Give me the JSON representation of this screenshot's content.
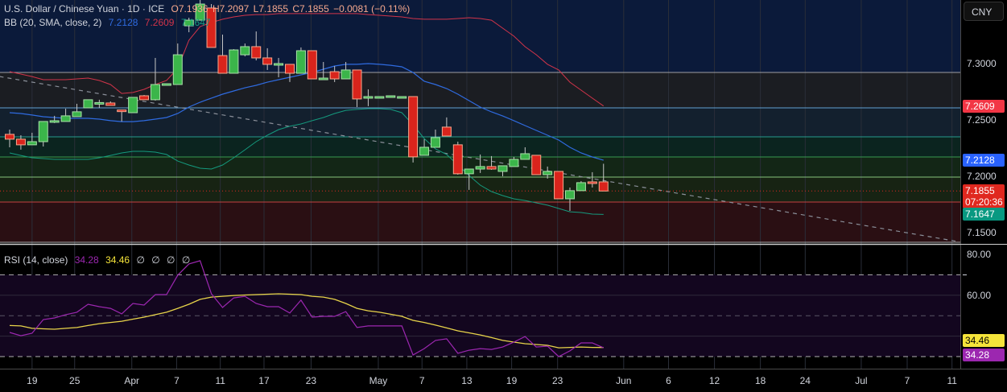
{
  "header": {
    "symbol": "U.S. Dollar / Chinese Yuan · 1D · ICE",
    "open": "O7.1936",
    "high": "H7.2097",
    "low": "L7.1855",
    "close": "C7.1855",
    "change": "−0.0081 (−0.11%)"
  },
  "bb_legend": {
    "label": "BB (20, SMA, close, 2)",
    "basis": "7.2128",
    "upper": "7.2609",
    "lower": "7.1647"
  },
  "rsi_legend": {
    "label": "RSI (14, close)",
    "rsi": "34.28",
    "ma": "34.46",
    "na": [
      "∅",
      "∅",
      "∅",
      "∅"
    ]
  },
  "currency_button": "CNY",
  "price_axis": {
    "ticks": [
      {
        "v": 7.3,
        "label": "7.3000"
      },
      {
        "v": 7.25,
        "label": "7.2500"
      },
      {
        "v": 7.2,
        "label": "7.2000"
      },
      {
        "v": 7.15,
        "label": "7.1500"
      }
    ],
    "badges": [
      {
        "v": 7.2609,
        "label": "7.2609",
        "color": "#f23645"
      },
      {
        "v": 7.2128,
        "label": "7.2128",
        "color": "#2962ff"
      },
      {
        "v": 7.1855,
        "label": "7.1855",
        "sub": "07:20:36",
        "color": "#e0281f"
      },
      {
        "v": 7.1647,
        "label": "7.1647",
        "color": "#089981"
      }
    ]
  },
  "rsi_axis": {
    "ticks": [
      {
        "v": 80,
        "label": "80.00"
      },
      {
        "v": 60,
        "label": "60.00"
      }
    ],
    "badges": [
      {
        "v": 34.46,
        "label": "34.46",
        "color": "#f5e43a",
        "text": "#000"
      },
      {
        "v": 34.28,
        "label": "34.28",
        "color": "#9c27b0",
        "text": "#fff"
      }
    ]
  },
  "time_axis": [
    {
      "i": 2.0,
      "label": "19"
    },
    {
      "i": 5.8,
      "label": "25"
    },
    {
      "i": 10.9,
      "label": "Apr"
    },
    {
      "i": 14.9,
      "label": "7"
    },
    {
      "i": 18.8,
      "label": "11"
    },
    {
      "i": 22.7,
      "label": "17"
    },
    {
      "i": 26.9,
      "label": "23"
    },
    {
      "i": 32.9,
      "label": "May"
    },
    {
      "i": 36.8,
      "label": "7"
    },
    {
      "i": 40.8,
      "label": "13"
    },
    {
      "i": 44.8,
      "label": "19"
    },
    {
      "i": 48.9,
      "label": "23"
    },
    {
      "i": 54.8,
      "label": "Jun"
    },
    {
      "i": 58.8,
      "label": "6"
    },
    {
      "i": 62.9,
      "label": "12"
    },
    {
      "i": 67.0,
      "label": "18"
    },
    {
      "i": 71.0,
      "label": "24"
    },
    {
      "i": 76.0,
      "label": "Jul"
    },
    {
      "i": 80.1,
      "label": "7"
    },
    {
      "i": 84.1,
      "label": "11"
    }
  ],
  "colors": {
    "up": "#3bb54a",
    "up_border": "#a8e0a8",
    "down": "#d9241c",
    "down_border": "#f7a98e",
    "bb_upper": "#d2344a",
    "bb_basis": "#2f6be0",
    "bb_lower": "#159a7e",
    "rsi": "#9c27b0",
    "rsi_ma": "#e8d44a"
  },
  "chart_data": {
    "type": "candlestick",
    "price_range": [
      7.115,
      7.355
    ],
    "candles_ohlc": [
      [
        7.2358,
        7.24,
        7.2243,
        7.2315
      ],
      [
        7.2315,
        7.235,
        7.2222,
        7.2265
      ],
      [
        7.2265,
        7.2372,
        7.2265,
        7.2293
      ],
      [
        7.2293,
        7.2472,
        7.225,
        7.2472
      ],
      [
        7.2465,
        7.2522,
        7.2458,
        7.2479
      ],
      [
        7.2472,
        7.2586,
        7.2472,
        7.2522
      ],
      [
        7.2515,
        7.2629,
        7.2515,
        7.2558
      ],
      [
        7.2593,
        7.2665,
        7.2593,
        7.2665
      ],
      [
        7.2636,
        7.2665,
        7.2593,
        7.264
      ],
      [
        7.2636,
        7.265,
        7.2615,
        7.2615
      ],
      [
        7.2574,
        7.2574,
        7.2472,
        7.257
      ],
      [
        7.255,
        7.2686,
        7.255,
        7.2686
      ],
      [
        7.27,
        7.2707,
        7.2665,
        7.2665
      ],
      [
        7.2665,
        7.3036,
        7.2657,
        7.28
      ],
      [
        7.28,
        7.2807,
        7.28,
        7.2807
      ],
      [
        7.28,
        7.3164,
        7.28,
        7.3064
      ],
      [
        7.3321,
        7.3393,
        7.3264,
        7.3371
      ],
      [
        7.3371,
        7.355,
        7.3371,
        7.3514
      ],
      [
        7.3479,
        7.3514,
        7.3129,
        7.3129
      ],
      [
        7.3057,
        7.3243,
        7.29,
        7.29
      ],
      [
        7.29,
        7.3114,
        7.29,
        7.3107
      ],
      [
        7.3064,
        7.3164,
        7.305,
        7.3136
      ],
      [
        7.3136,
        7.3271,
        7.3014,
        7.3036
      ],
      [
        7.3036,
        7.3122,
        7.2929,
        7.2979
      ],
      [
        7.2979,
        7.3036,
        7.2864,
        7.2986
      ],
      [
        7.2979,
        7.2979,
        7.2822,
        7.29
      ],
      [
        7.29,
        7.3129,
        7.29,
        7.31
      ],
      [
        7.31,
        7.31,
        7.285,
        7.285
      ],
      [
        7.285,
        7.3,
        7.285,
        7.2857
      ],
      [
        7.2914,
        7.2964,
        7.2822,
        7.285
      ],
      [
        7.285,
        7.3,
        7.285,
        7.2929
      ],
      [
        7.2929,
        7.2929,
        7.26,
        7.2672
      ],
      [
        7.2679,
        7.2757,
        7.2608,
        7.2693
      ],
      [
        7.2693,
        7.2693,
        7.2693,
        7.2693
      ],
      [
        7.27,
        7.27,
        7.27,
        7.27
      ],
      [
        7.2693,
        7.2693,
        7.2693,
        7.2693
      ],
      [
        7.2693,
        7.2693,
        7.2108,
        7.2158
      ],
      [
        7.2172,
        7.2315,
        7.2172,
        7.2243
      ],
      [
        7.2243,
        7.24,
        7.2243,
        7.2329
      ],
      [
        7.2422,
        7.2508,
        7.2343,
        7.2343
      ],
      [
        7.2265,
        7.2293,
        7.2,
        7.2008
      ],
      [
        7.2008,
        7.205,
        7.1865,
        7.205
      ],
      [
        7.205,
        7.2179,
        7.2015,
        7.2072
      ],
      [
        7.2072,
        7.2165,
        7.2043,
        7.205
      ],
      [
        7.2029,
        7.2079,
        7.1986,
        7.2079
      ],
      [
        7.2072,
        7.2158,
        7.2072,
        7.2136
      ],
      [
        7.2136,
        7.2243,
        7.2136,
        7.2186
      ],
      [
        7.2172,
        7.2172,
        7.2,
        7.2
      ],
      [
        7.2,
        7.2072,
        7.1965,
        7.2029
      ],
      [
        7.2029,
        7.2029,
        7.1786,
        7.1786
      ],
      [
        7.1786,
        7.1886,
        7.1679,
        7.1858
      ],
      [
        7.1858,
        7.1943,
        7.1858,
        7.1929
      ],
      [
        7.1936,
        7.2022,
        7.1886,
        7.1929
      ],
      [
        7.1936,
        7.2097,
        7.1855,
        7.1855
      ]
    ],
    "bb_upper": [
      7.2914,
      7.2893,
      7.2871,
      7.2843,
      7.2843,
      7.2843,
      7.285,
      7.2857,
      7.2836,
      7.28,
      7.2721,
      7.2729,
      7.2757,
      7.28,
      7.2836,
      7.2943,
      7.3193,
      7.3314,
      7.335,
      7.3379,
      7.34,
      7.3414,
      7.3421,
      7.3421,
      7.3429,
      7.3429,
      7.3429,
      7.3429,
      7.3429,
      7.3429,
      7.3429,
      7.3429,
      7.3421,
      7.3414,
      7.3407,
      7.34,
      7.3386,
      7.3379,
      7.3379,
      7.3379,
      7.3386,
      7.3393,
      7.3386,
      7.3371,
      7.33,
      7.3229,
      7.3136,
      7.3064,
      7.2979,
      7.2929,
      7.2821,
      7.275,
      7.2679,
      7.2609
    ],
    "bb_basis": [
      7.255,
      7.2543,
      7.2529,
      7.2514,
      7.2507,
      7.25,
      7.25,
      7.25,
      7.2493,
      7.2479,
      7.2471,
      7.2471,
      7.2479,
      7.2493,
      7.2507,
      7.2543,
      7.26,
      7.2643,
      7.2679,
      7.2714,
      7.2743,
      7.2771,
      7.2793,
      7.2821,
      7.2843,
      7.2864,
      7.2886,
      7.2907,
      7.2936,
      7.2964,
      7.2979,
      7.2979,
      7.2986,
      7.2979,
      7.2971,
      7.2957,
      7.2907,
      7.2829,
      7.28,
      7.2764,
      7.2714,
      7.2657,
      7.26,
      7.2557,
      7.2521,
      7.2479,
      7.2436,
      7.2393,
      7.235,
      7.2307,
      7.2243,
      7.2193,
      7.2157,
      7.2128
    ],
    "bb_lower": [
      7.2193,
      7.2171,
      7.215,
      7.2143,
      7.2136,
      7.2136,
      7.2136,
      7.2136,
      7.215,
      7.2171,
      7.2193,
      7.2207,
      7.2207,
      7.22,
      7.2179,
      7.2121,
      7.2086,
      7.2057,
      7.205,
      7.2086,
      7.215,
      7.2221,
      7.2293,
      7.235,
      7.24,
      7.2429,
      7.245,
      7.2479,
      7.2507,
      7.2543,
      7.2571,
      7.2579,
      7.2586,
      7.2586,
      7.2579,
      7.255,
      7.2443,
      7.2321,
      7.2229,
      7.2179,
      7.2086,
      7.1993,
      7.1907,
      7.185,
      7.1814,
      7.1786,
      7.1771,
      7.175,
      7.1729,
      7.17,
      7.1671,
      7.1664,
      7.165,
      7.1647
    ],
    "trendline": [
      [
        -0.9,
        7.2871
      ],
      [
        84.6,
        7.1407
      ]
    ],
    "horizontal_levels": [
      {
        "v": 7.2907,
        "color": "#b8b8b8",
        "zone": "#1b1d22"
      },
      {
        "v": 7.2593,
        "color": "#6fb7f0",
        "zone": "#13202e"
      },
      {
        "v": 7.2336,
        "color": "#2bb0a0",
        "zone": "#0b241f"
      },
      {
        "v": 7.2157,
        "color": "#3fae5a",
        "zone": "#132616"
      },
      {
        "v": 7.1979,
        "color": "#9be08f",
        "zone": "#172313"
      },
      {
        "v": 7.1757,
        "color": "#e04848",
        "zone": "#2a0f13"
      },
      {
        "v": 7.14,
        "color": "#c8c8c8",
        "zone": "#000000"
      }
    ],
    "top_zone_color": "#0b1a3a",
    "last_price": 7.1855,
    "rsi": [
      41.8,
      40.2,
      41.4,
      48.1,
      48.9,
      50.5,
      51.7,
      55.6,
      54.4,
      53.6,
      50.9,
      56.0,
      55.2,
      60.3,
      60.3,
      69.8,
      75.3,
      76.9,
      60.7,
      54.0,
      58.7,
      59.5,
      56.0,
      54.4,
      54.4,
      51.3,
      57.6,
      49.3,
      49.7,
      49.7,
      52.0,
      44.2,
      45.0,
      45.0,
      45.0,
      45.0,
      30.8,
      33.9,
      37.9,
      38.7,
      31.6,
      33.1,
      33.9,
      33.5,
      34.7,
      37.1,
      39.8,
      34.7,
      35.1,
      30.0,
      32.8,
      36.7,
      36.7,
      34.28
    ],
    "rsi_ma": [
      45.2,
      45.0,
      43.8,
      43.6,
      43.4,
      43.8,
      44.2,
      45.2,
      46.1,
      46.7,
      47.3,
      48.3,
      49.3,
      50.5,
      51.7,
      53.6,
      55.6,
      58.0,
      59.1,
      59.5,
      59.9,
      60.1,
      60.3,
      60.5,
      60.7,
      60.5,
      60.3,
      59.5,
      59.1,
      58.0,
      56.0,
      53.6,
      52.4,
      51.7,
      50.7,
      49.7,
      47.7,
      46.7,
      45.4,
      44.0,
      42.6,
      41.6,
      40.6,
      39.3,
      37.9,
      37.1,
      36.3,
      35.9,
      35.5,
      34.3,
      34.5,
      34.7,
      34.5,
      34.46
    ],
    "rsi_levels": {
      "upper": 70,
      "middle": 50,
      "lower": 30
    }
  }
}
